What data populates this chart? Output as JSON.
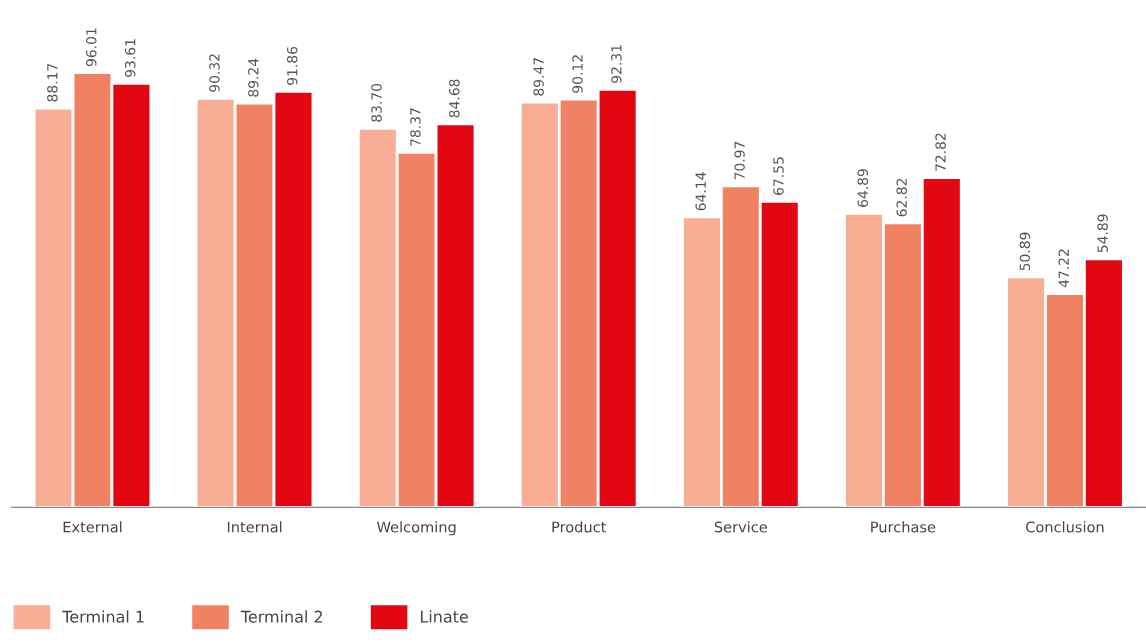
{
  "chart_data": {
    "type": "bar",
    "categories": [
      "External",
      "Internal",
      "Welcoming",
      "Product",
      "Service",
      "Purchase",
      "Conclusion"
    ],
    "series": [
      {
        "name": "Terminal 1",
        "color": "#f7ae94",
        "values": [
          88.17,
          90.32,
          83.7,
          89.47,
          64.14,
          64.89,
          50.89
        ],
        "value_labels": [
          "88.17",
          "90.32",
          "83.70",
          "89.47",
          "64.14",
          "64.89",
          "50.89"
        ]
      },
      {
        "name": "Terminal 2",
        "color": "#f08263",
        "values": [
          96.01,
          89.24,
          78.37,
          90.12,
          70.97,
          62.82,
          47.22
        ],
        "value_labels": [
          "96.01",
          "89.24",
          "78.37",
          "90.12",
          "70.97",
          "62.82",
          "47.22"
        ]
      },
      {
        "name": "Linate",
        "color": "#e30613",
        "values": [
          93.61,
          91.86,
          84.68,
          92.31,
          67.55,
          72.82,
          54.89
        ],
        "value_labels": [
          "93.61",
          "91.86",
          "84.68",
          "92.31",
          "67.55",
          "72.82",
          "54.89"
        ]
      }
    ],
    "grid": false,
    "legend": "bottom left"
  }
}
